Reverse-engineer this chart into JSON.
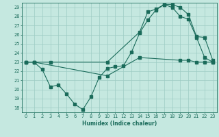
{
  "title": "",
  "xlabel": "Humidex (Indice chaleur)",
  "bg_color": "#c5e8e0",
  "line_color": "#1a6b5a",
  "grid_color": "#9dccc4",
  "xlim": [
    -0.5,
    23.5
  ],
  "ylim": [
    17.5,
    29.5
  ],
  "yticks": [
    18,
    19,
    20,
    21,
    22,
    23,
    24,
    25,
    26,
    27,
    28,
    29
  ],
  "xticks": [
    0,
    1,
    2,
    3,
    4,
    5,
    6,
    7,
    8,
    9,
    10,
    11,
    12,
    13,
    14,
    15,
    16,
    17,
    18,
    19,
    20,
    21,
    22,
    23
  ],
  "line1_x": [
    0,
    1,
    2,
    3,
    4,
    5,
    6,
    7,
    8,
    9,
    10,
    11,
    12,
    13,
    14,
    15,
    16,
    17,
    18,
    19,
    20,
    21,
    22,
    23
  ],
  "line1_y": [
    23.0,
    23.0,
    22.2,
    20.3,
    20.5,
    19.5,
    18.4,
    17.8,
    19.2,
    21.3,
    22.3,
    22.5,
    22.6,
    24.1,
    26.2,
    27.6,
    28.7,
    29.3,
    29.0,
    28.0,
    27.7,
    25.7,
    23.5,
    23.0
  ],
  "line2_x": [
    0,
    1,
    3,
    10,
    14,
    15,
    16,
    17,
    18,
    19,
    20,
    21,
    22,
    23
  ],
  "line2_y": [
    23.0,
    23.0,
    23.0,
    23.0,
    26.3,
    28.5,
    28.8,
    29.3,
    29.3,
    29.0,
    28.2,
    25.8,
    25.7,
    23.2
  ],
  "line3_x": [
    0,
    1,
    10,
    14,
    19,
    20,
    21,
    22,
    23
  ],
  "line3_y": [
    23.0,
    23.0,
    21.5,
    23.5,
    23.2,
    23.2,
    23.0,
    23.0,
    23.0
  ]
}
